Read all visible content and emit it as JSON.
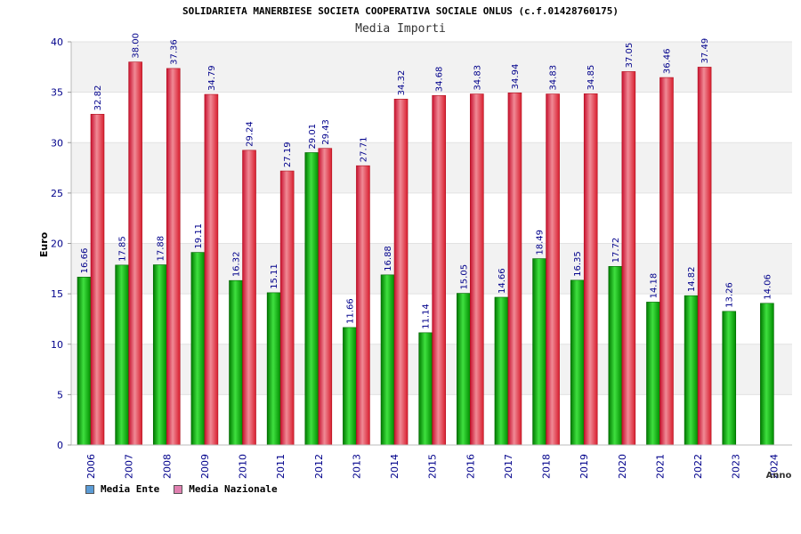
{
  "chart_data": {
    "type": "bar",
    "title": "SOLIDARIETA MANERBIESE SOCIETA COOPERATIVA SOCIALE ONLUS (c.f.01428760175)",
    "subtitle": "Media Importi",
    "ylabel": "Euro",
    "xlabel": "Anno",
    "ylim": [
      0,
      40
    ],
    "yticks": [
      "0",
      "5",
      "10",
      "15",
      "20",
      "25",
      "30",
      "35",
      "40"
    ],
    "categories": [
      "2006",
      "2007",
      "2008",
      "2009",
      "2010",
      "2011",
      "2012",
      "2013",
      "2014",
      "2015",
      "2016",
      "2017",
      "2018",
      "2019",
      "2020",
      "2021",
      "2022",
      "2023",
      "2024"
    ],
    "series": [
      {
        "name": "Media Ente",
        "color": "#00a000",
        "values": [
          16.66,
          17.85,
          17.88,
          19.11,
          16.32,
          15.11,
          29.01,
          11.66,
          16.88,
          11.14,
          15.05,
          14.66,
          18.49,
          16.35,
          17.72,
          14.18,
          14.82,
          13.26,
          14.06
        ],
        "labels": [
          "16.66",
          "17.85",
          "17.88",
          "19.11",
          "16.32",
          "15.11",
          "29.01",
          "11.66",
          "16.88",
          "11.14",
          "15.05",
          "14.66",
          "18.49",
          "16.35",
          "17.72",
          "14.18",
          "14.82",
          "13.26",
          "14.06"
        ]
      },
      {
        "name": "Media Nazionale",
        "color": "#e0202a",
        "values": [
          32.82,
          38.0,
          37.36,
          34.79,
          29.24,
          27.19,
          29.43,
          27.71,
          34.32,
          34.68,
          34.83,
          34.94,
          34.83,
          34.85,
          37.05,
          36.46,
          37.49,
          null,
          null
        ],
        "labels": [
          "32.82",
          "38.00",
          "37.36",
          "34.79",
          "29.24",
          "27.19",
          "29.43",
          "27.71",
          "34.32",
          "34.68",
          "34.83",
          "34.94",
          "34.83",
          "34.85",
          "37.05",
          "36.46",
          "37.49",
          null,
          null
        ]
      }
    ],
    "legend": {
      "position": "bottom-left",
      "items": [
        {
          "label": "Media Ente",
          "color": "#5b9bd5"
        },
        {
          "label": "Media Nazionale",
          "color": "#e080b0"
        }
      ]
    },
    "grid": true,
    "grid_band_color": "#f2f2f2"
  }
}
